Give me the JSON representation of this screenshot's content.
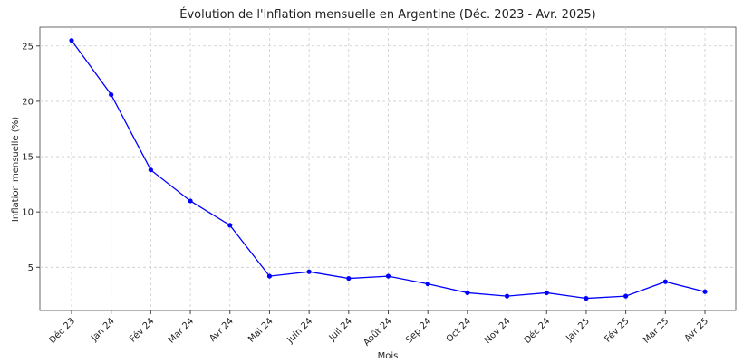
{
  "chart_data": {
    "type": "line",
    "title": "Évolution de l'inflation mensuelle en Argentine (Déc. 2023 - Avr. 2025)",
    "x_label": "Mois",
    "y_label": "Inflation mensuelle (%)",
    "categories": [
      "Déc 23",
      "Jan 24",
      "Fév 24",
      "Mar 24",
      "Avr 24",
      "Mai 24",
      "Juin 24",
      "Juil 24",
      "Août 24",
      "Sep 24",
      "Oct 24",
      "Nov 24",
      "Déc 24",
      "Jan 25",
      "Fév 25",
      "Mar 25",
      "Avr 25"
    ],
    "series": [
      {
        "name": "Inflation mensuelle",
        "color": "#0000ff",
        "values": [
          25.5,
          20.6,
          13.8,
          11.0,
          8.8,
          4.2,
          4.6,
          4.0,
          4.2,
          3.5,
          2.7,
          2.4,
          2.7,
          2.2,
          2.4,
          3.7,
          2.8
        ]
      }
    ],
    "ylim": [
      1.1,
      26.7
    ],
    "yticks": [
      5,
      10,
      15,
      20,
      25
    ],
    "grid": true
  }
}
